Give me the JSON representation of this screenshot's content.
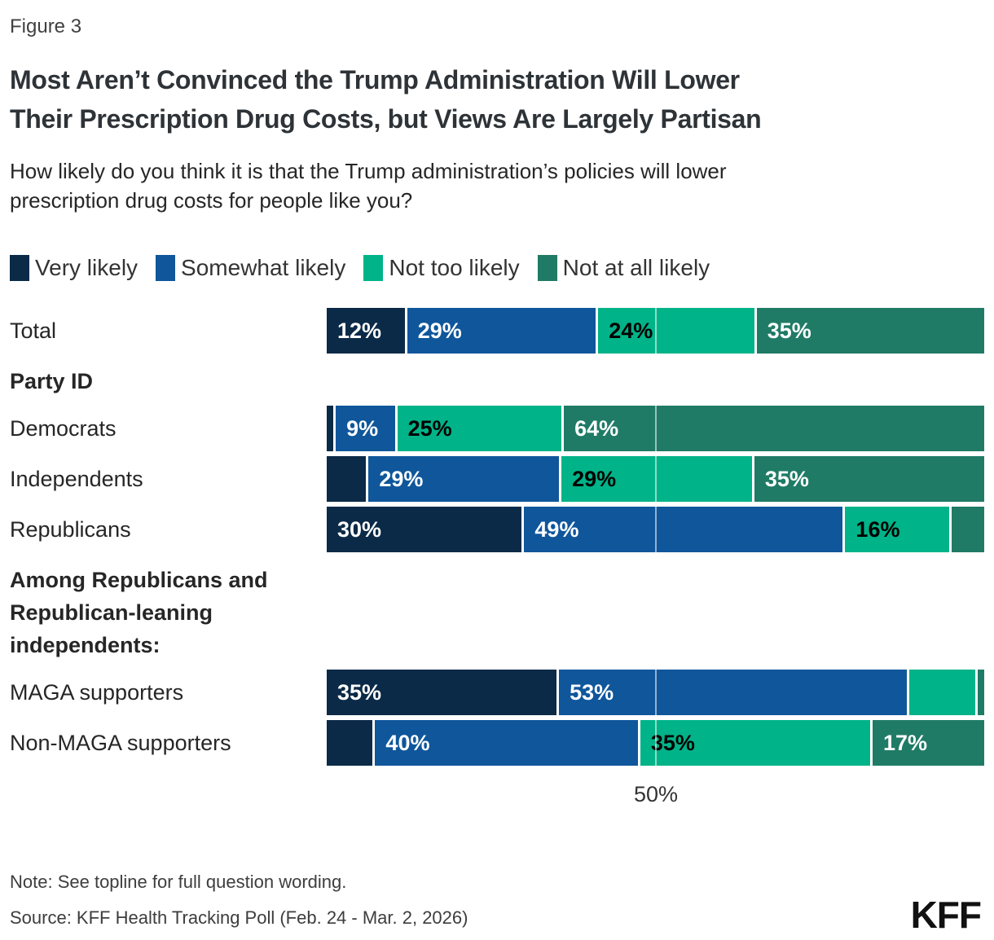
{
  "figure_label": "Figure 3",
  "title": "Most Aren’t Convinced the Trump Administration Will Lower\nTheir Prescription Drug Costs, but Views Are Largely Partisan",
  "subtitle": "How likely do you think it is that the Trump administration’s policies will lower\nprescription drug costs for people like you?",
  "legend": [
    {
      "label": "Very likely",
      "color": "#0b2a47"
    },
    {
      "label": "Somewhat likely",
      "color": "#0f569b"
    },
    {
      "label": "Not too likely",
      "color": "#00b388"
    },
    {
      "label": "Not at all likely",
      "color": "#1f7b66"
    }
  ],
  "chart_data": {
    "type": "bar",
    "orientation": "horizontal-stacked",
    "unit": "percent",
    "series_names": [
      "Very likely",
      "Somewhat likely",
      "Not too likely",
      "Not at all likely"
    ],
    "series_colors": [
      "#0b2a47",
      "#0f569b",
      "#00b388",
      "#1f7b66"
    ],
    "label_text_colors": [
      "#ffffff",
      "#ffffff",
      "#000000",
      "#ffffff"
    ],
    "xlim": [
      0,
      100
    ],
    "gridline_value": 50,
    "gridline_label": "50%",
    "sections": [
      {
        "header": "",
        "rows": [
          {
            "label": "Total",
            "values": [
              12,
              29,
              24,
              35
            ],
            "labels": [
              "12%",
              "29%",
              "24%",
              "35%"
            ]
          }
        ]
      },
      {
        "header": "Party ID",
        "rows": [
          {
            "label": "Democrats",
            "values": [
              1,
              9,
              25,
              64
            ],
            "labels": [
              "",
              "9%",
              "25%",
              "64%"
            ]
          },
          {
            "label": "Independents",
            "values": [
              6,
              29,
              29,
              35
            ],
            "labels": [
              "",
              "29%",
              "29%",
              "35%"
            ]
          },
          {
            "label": "Republicans",
            "values": [
              30,
              49,
              16,
              5
            ],
            "labels": [
              "30%",
              "49%",
              "16%",
              ""
            ]
          }
        ]
      },
      {
        "header": "Among Republicans and\nRepublican-leaning\nindependents:",
        "rows": [
          {
            "label": "MAGA supporters",
            "values": [
              35,
              53,
              10,
              1
            ],
            "labels": [
              "35%",
              "53%",
              "",
              ""
            ]
          },
          {
            "label": "Non-MAGA supporters",
            "values": [
              7,
              40,
              35,
              17
            ],
            "labels": [
              "",
              "40%",
              "35%",
              "17%"
            ]
          }
        ]
      }
    ]
  },
  "note": "Note: See topline for full question wording.",
  "source": "Source: KFF Health Tracking Poll (Feb. 24 - Mar. 2, 2026)",
  "logo": "KFF"
}
